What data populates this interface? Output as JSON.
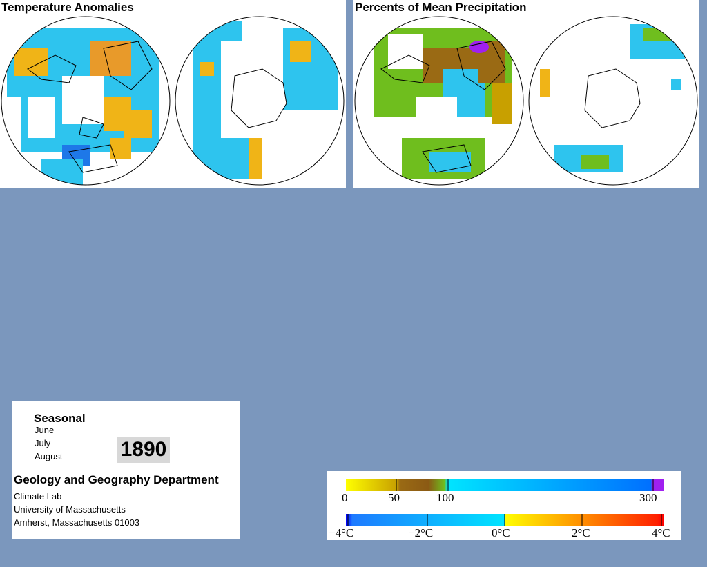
{
  "panels": {
    "temperature": {
      "title": "Temperature Anomalies"
    },
    "precipitation": {
      "title": "Percents of Mean Precipitation"
    }
  },
  "info": {
    "season": "Seasonal",
    "months": [
      "June",
      "July",
      "August"
    ],
    "year": "1890",
    "department": "Geology and Geography Department",
    "address": [
      "Climate Lab",
      "University of Massachusetts",
      "Amherst, Massachusetts 01003"
    ]
  },
  "legend": {
    "precipitation": {
      "labels": [
        "0",
        "50",
        "100",
        "300"
      ],
      "colors": [
        "#ffff00",
        "#c8a000",
        "#8b5a14",
        "#6fbe1e",
        "#00e5ff",
        "#0070ff",
        "#a020f0"
      ]
    },
    "temperature": {
      "labels": [
        "−4°C",
        "−2°C",
        "0°C",
        "2°C",
        "4°C"
      ],
      "colors": [
        "#0000ff",
        "#1e90ff",
        "#00e5ff",
        "#ffff00",
        "#ffa500",
        "#ff0000"
      ]
    }
  },
  "colors": {
    "background": "#7b97bd",
    "cool": "#2ec4ee",
    "warm": "#f0b417",
    "dry": "#9a6a14",
    "wet_green": "#6fbe1e",
    "very_wet": "#a020f0"
  }
}
